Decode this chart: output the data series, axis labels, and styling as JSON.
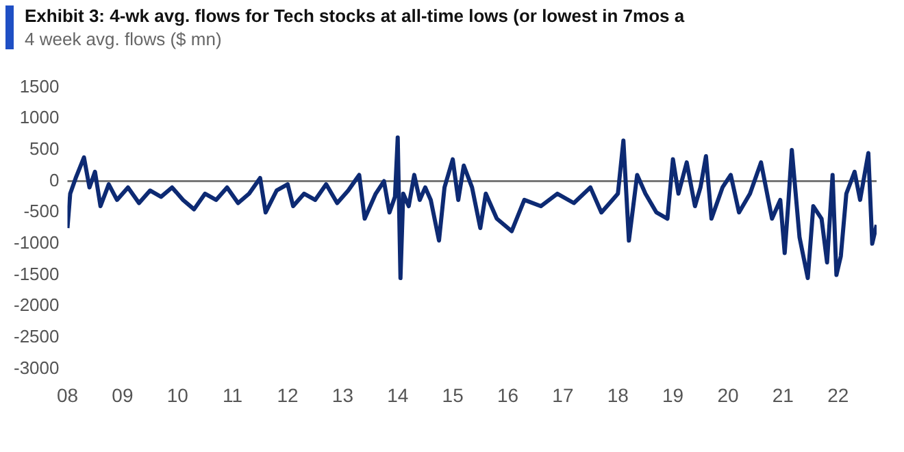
{
  "chart_data": {
    "type": "line",
    "title": "Exhibit 3: 4-wk avg. flows for Tech stocks at all-time lows (or lowest in 7mos a",
    "subtitle": "4 week avg. flows ($ mn)",
    "series": [
      {
        "color": "#0d2a73",
        "x": [
          2008.0,
          2008.05,
          2008.15,
          2008.3,
          2008.4,
          2008.5,
          2008.6,
          2008.75,
          2008.9,
          2009.1,
          2009.3,
          2009.5,
          2009.7,
          2009.9,
          2010.1,
          2010.3,
          2010.5,
          2010.7,
          2010.9,
          2011.1,
          2011.3,
          2011.5,
          2011.6,
          2011.8,
          2012.0,
          2012.1,
          2012.3,
          2012.5,
          2012.7,
          2012.9,
          2013.1,
          2013.3,
          2013.4,
          2013.6,
          2013.75,
          2013.85,
          2013.95,
          2014.0,
          2014.05,
          2014.1,
          2014.2,
          2014.3,
          2014.4,
          2014.5,
          2014.6,
          2014.75,
          2014.85,
          2015.0,
          2015.1,
          2015.2,
          2015.35,
          2015.5,
          2015.6,
          2015.8,
          2016.07,
          2016.3,
          2016.6,
          2016.9,
          2017.2,
          2017.5,
          2017.7,
          2017.9,
          2018.0,
          2018.1,
          2018.2,
          2018.35,
          2018.5,
          2018.7,
          2018.9,
          2019.0,
          2019.1,
          2019.25,
          2019.4,
          2019.5,
          2019.6,
          2019.7,
          2019.9,
          2020.05,
          2020.2,
          2020.4,
          2020.6,
          2020.8,
          2020.95,
          2021.03,
          2021.1,
          2021.16,
          2021.3,
          2021.45,
          2021.55,
          2021.7,
          2021.8,
          2021.9,
          2021.97,
          2022.05,
          2022.15,
          2022.3,
          2022.4,
          2022.55,
          2022.62,
          2022.7
        ],
        "values": [
          -750,
          -200,
          50,
          380,
          -100,
          150,
          -400,
          -50,
          -300,
          -100,
          -350,
          -150,
          -250,
          -100,
          -300,
          -450,
          -200,
          -300,
          -100,
          -350,
          -200,
          50,
          -500,
          -150,
          -50,
          -400,
          -200,
          -300,
          -50,
          -350,
          -150,
          100,
          -600,
          -200,
          0,
          -500,
          -250,
          700,
          -1550,
          -200,
          -400,
          100,
          -300,
          -100,
          -300,
          -950,
          -100,
          350,
          -300,
          250,
          -100,
          -750,
          -200,
          -600,
          -800,
          -300,
          -400,
          -200,
          -350,
          -100,
          -500,
          -300,
          -200,
          650,
          -950,
          100,
          -200,
          -500,
          -600,
          350,
          -200,
          300,
          -400,
          -100,
          400,
          -600,
          -100,
          100,
          -500,
          -200,
          300,
          -600,
          -300,
          -1150,
          -300,
          500,
          -900,
          -1550,
          -400,
          -600,
          -1300,
          100,
          -1500,
          -1200,
          -200,
          150,
          -300,
          450,
          -1000,
          -700
        ]
      }
    ],
    "xlim": [
      2008,
      2022.7
    ],
    "xticks": [
      {
        "value": 2008,
        "label": "08"
      },
      {
        "value": 2009,
        "label": "09"
      },
      {
        "value": 2010,
        "label": "10"
      },
      {
        "value": 2011,
        "label": "11"
      },
      {
        "value": 2012,
        "label": "12"
      },
      {
        "value": 2013,
        "label": "13"
      },
      {
        "value": 2014,
        "label": "14"
      },
      {
        "value": 2015,
        "label": "15"
      },
      {
        "value": 2016,
        "label": "16"
      },
      {
        "value": 2017,
        "label": "17"
      },
      {
        "value": 2018,
        "label": "18"
      },
      {
        "value": 2019,
        "label": "19"
      },
      {
        "value": 2020,
        "label": "20"
      },
      {
        "value": 2021,
        "label": "21"
      },
      {
        "value": 2022,
        "label": "22"
      }
    ],
    "ylim": [
      -3000,
      1500
    ],
    "yticks": [
      -3000,
      -2500,
      -2000,
      -1500,
      -1000,
      -500,
      0,
      500,
      1000,
      1500
    ],
    "ref_lines": [
      {
        "axis": "y",
        "value": 0,
        "color": "#777777"
      }
    ],
    "grid": false,
    "legend": false
  }
}
